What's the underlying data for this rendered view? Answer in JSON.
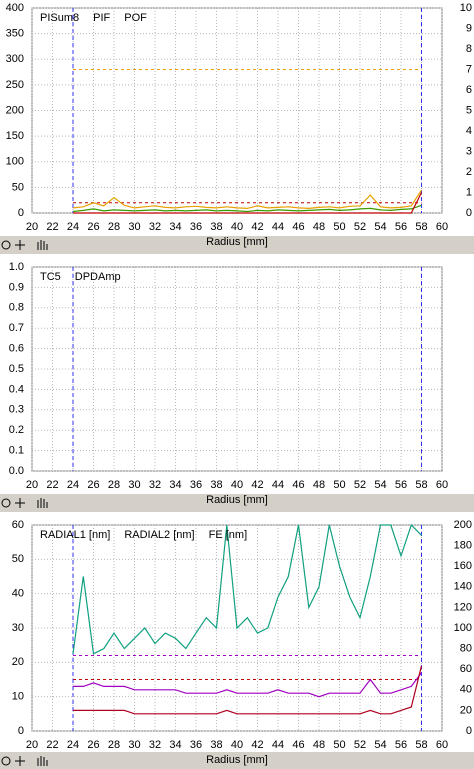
{
  "chart_data": [
    {
      "type": "line",
      "xlabel": "Radius [mm]",
      "x": [
        24,
        25,
        26,
        27,
        28,
        29,
        30,
        31,
        32,
        33,
        34,
        35,
        36,
        37,
        38,
        39,
        40,
        41,
        42,
        43,
        44,
        45,
        46,
        47,
        48,
        49,
        50,
        51,
        52,
        53,
        54,
        55,
        56,
        57,
        58
      ],
      "xlim": [
        20,
        60
      ],
      "xticks": [
        20,
        22,
        24,
        26,
        28,
        30,
        32,
        34,
        36,
        38,
        40,
        42,
        44,
        46,
        48,
        50,
        52,
        54,
        56,
        58,
        60
      ],
      "ylim": [
        0,
        400
      ],
      "yticks": [
        0,
        50,
        100,
        150,
        200,
        250,
        300,
        350,
        400
      ],
      "y2lim": [
        0,
        10
      ],
      "y2ticks": [
        0,
        1,
        2,
        3,
        4,
        5,
        6,
        7,
        8,
        9,
        10
      ],
      "vlines": [
        24,
        58
      ],
      "thresholds": [
        {
          "value": 280,
          "color": "#e8a000"
        },
        {
          "value": 20,
          "color": "#c00000"
        }
      ],
      "series": [
        {
          "name": "PISum8",
          "color": "#e8a000",
          "values": [
            10,
            12,
            20,
            14,
            30,
            15,
            10,
            12,
            14,
            11,
            10,
            12,
            13,
            11,
            10,
            12,
            10,
            9,
            14,
            10,
            11,
            12,
            10,
            9,
            11,
            12,
            10,
            13,
            14,
            35,
            12,
            10,
            11,
            14,
            45
          ]
        },
        {
          "name": "PIF",
          "color": "#3a9a00",
          "values": [
            3,
            5,
            8,
            4,
            6,
            5,
            4,
            5,
            6,
            4,
            5,
            4,
            5,
            6,
            4,
            5,
            4,
            3,
            5,
            4,
            6,
            5,
            4,
            5,
            6,
            7,
            5,
            6,
            8,
            9,
            6,
            5,
            7,
            8,
            15
          ]
        },
        {
          "name": "POF",
          "color": "#c00000",
          "values": [
            0,
            0,
            0,
            0,
            0,
            0,
            0,
            0,
            0,
            0,
            0,
            0,
            0,
            0,
            0,
            0,
            0,
            0,
            0,
            0,
            0,
            0,
            0,
            0,
            0,
            0,
            0,
            0,
            0,
            0,
            0,
            0,
            0,
            0,
            40
          ]
        }
      ]
    },
    {
      "type": "line",
      "xlabel": "Radius [mm]",
      "xlim": [
        20,
        60
      ],
      "xticks": [
        20,
        22,
        24,
        26,
        28,
        30,
        32,
        34,
        36,
        38,
        40,
        42,
        44,
        46,
        48,
        50,
        52,
        54,
        56,
        58,
        60
      ],
      "ylim": [
        0,
        1
      ],
      "yticks": [
        {
          "value": 0,
          "label": "0.0"
        },
        0.1,
        0.2,
        0.3,
        0.4,
        0.5,
        0.6,
        0.7,
        0.8,
        0.9,
        {
          "value": 1,
          "label": "1.0"
        }
      ],
      "vlines": [
        24,
        58
      ],
      "series": [
        {
          "name": "TC5",
          "color": "#006000"
        },
        {
          "name": "DPDAmp",
          "color": "#a00000"
        }
      ]
    },
    {
      "type": "line",
      "xlabel": "Radius [mm]",
      "x": [
        24,
        25,
        26,
        27,
        28,
        29,
        30,
        31,
        32,
        33,
        34,
        35,
        36,
        37,
        38,
        39,
        40,
        41,
        42,
        43,
        44,
        45,
        46,
        47,
        48,
        49,
        50,
        51,
        52,
        53,
        54,
        55,
        56,
        57,
        58
      ],
      "xlim": [
        20,
        60
      ],
      "xticks": [
        20,
        22,
        24,
        26,
        28,
        30,
        32,
        34,
        36,
        38,
        40,
        42,
        44,
        46,
        48,
        50,
        52,
        54,
        56,
        58,
        60
      ],
      "ylim": [
        0,
        60
      ],
      "yticks": [
        0,
        10,
        20,
        30,
        40,
        50,
        60
      ],
      "y2lim": [
        0,
        200
      ],
      "y2ticks": [
        0,
        20,
        40,
        60,
        80,
        100,
        120,
        140,
        160,
        180,
        200
      ],
      "vlines": [
        24,
        58
      ],
      "thresholds": [
        {
          "value": 22,
          "color": "#a000c0"
        },
        {
          "value": 15,
          "color": "#c00000"
        }
      ],
      "series": [
        {
          "name": "RADIAL1 [nm]",
          "color": "#a000c0",
          "values": [
            13,
            13,
            14,
            13,
            13,
            13,
            12,
            12,
            12,
            12,
            12,
            11,
            11,
            11,
            11,
            12,
            11,
            11,
            11,
            11,
            12,
            11,
            11,
            11,
            10,
            11,
            11,
            11,
            11,
            15,
            11,
            11,
            12,
            13,
            17
          ]
        },
        {
          "name": "RADIAL2 [nm]",
          "color": "#b00020",
          "values": [
            6,
            6,
            6,
            6,
            6,
            6,
            5,
            5,
            5,
            5,
            5,
            5,
            5,
            5,
            5,
            6,
            5,
            5,
            5,
            5,
            5,
            5,
            5,
            5,
            5,
            5,
            5,
            5,
            5,
            6,
            5,
            5,
            6,
            7,
            19
          ]
        },
        {
          "name": "FE [nm]",
          "color": "#10a080",
          "axis": "y2",
          "values": [
            75,
            150,
            75,
            80,
            95,
            80,
            90,
            100,
            85,
            95,
            90,
            80,
            95,
            110,
            100,
            200,
            100,
            110,
            95,
            100,
            130,
            150,
            200,
            120,
            140,
            200,
            160,
            130,
            110,
            150,
            200,
            200,
            170,
            200,
            190
          ]
        }
      ]
    }
  ]
}
